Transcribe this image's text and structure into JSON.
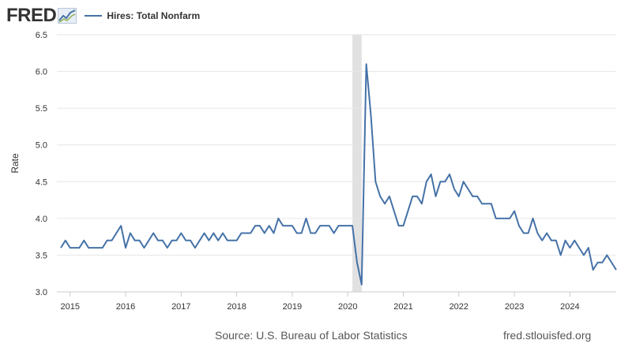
{
  "header": {
    "logo_text": "FRED",
    "logo_icon": "trend-graph-icon",
    "series_label": "Hires: Total Nonfarm",
    "series_color": "#4572a7"
  },
  "chart_data": {
    "type": "line",
    "title": "Hires: Total Nonfarm",
    "xlabel": "",
    "ylabel": "Rate",
    "ylim": [
      3.0,
      6.5
    ],
    "yticks": [
      "3.0",
      "3.5",
      "4.0",
      "4.5",
      "5.0",
      "5.5",
      "6.0",
      "6.5"
    ],
    "xticks": [
      "2015",
      "2016",
      "2017",
      "2018",
      "2019",
      "2020",
      "2021",
      "2022",
      "2023",
      "2024"
    ],
    "x_start": "2014-11",
    "x_frequency": "monthly",
    "recession": {
      "start": "2020-02",
      "end": "2020-04"
    },
    "grid": true,
    "series": [
      {
        "name": "Hires: Total Nonfarm",
        "color": "#4572a7",
        "values": [
          3.6,
          3.7,
          3.6,
          3.6,
          3.6,
          3.7,
          3.6,
          3.6,
          3.6,
          3.6,
          3.7,
          3.7,
          3.8,
          3.9,
          3.6,
          3.8,
          3.7,
          3.7,
          3.6,
          3.7,
          3.8,
          3.7,
          3.7,
          3.6,
          3.7,
          3.7,
          3.8,
          3.7,
          3.7,
          3.6,
          3.7,
          3.8,
          3.7,
          3.8,
          3.7,
          3.8,
          3.7,
          3.7,
          3.7,
          3.8,
          3.8,
          3.8,
          3.9,
          3.9,
          3.8,
          3.9,
          3.8,
          4.0,
          3.9,
          3.9,
          3.9,
          3.8,
          3.8,
          4.0,
          3.8,
          3.8,
          3.9,
          3.9,
          3.9,
          3.8,
          3.9,
          3.9,
          3.9,
          3.9,
          3.4,
          3.1,
          6.1,
          5.4,
          4.5,
          4.3,
          4.2,
          4.3,
          4.1,
          3.9,
          3.9,
          4.1,
          4.3,
          4.3,
          4.2,
          4.5,
          4.6,
          4.3,
          4.5,
          4.5,
          4.6,
          4.4,
          4.3,
          4.5,
          4.4,
          4.3,
          4.3,
          4.2,
          4.2,
          4.2,
          4.0,
          4.0,
          4.0,
          4.0,
          4.1,
          3.9,
          3.8,
          3.8,
          4.0,
          3.8,
          3.7,
          3.8,
          3.7,
          3.7,
          3.5,
          3.7,
          3.6,
          3.7,
          3.6,
          3.5,
          3.6,
          3.3,
          3.4,
          3.4,
          3.5,
          3.4,
          3.3
        ]
      }
    ]
  },
  "footer": {
    "source": "Source: U.S. Bureau of Labor Statistics",
    "url": "fred.stlouisfed.org"
  }
}
